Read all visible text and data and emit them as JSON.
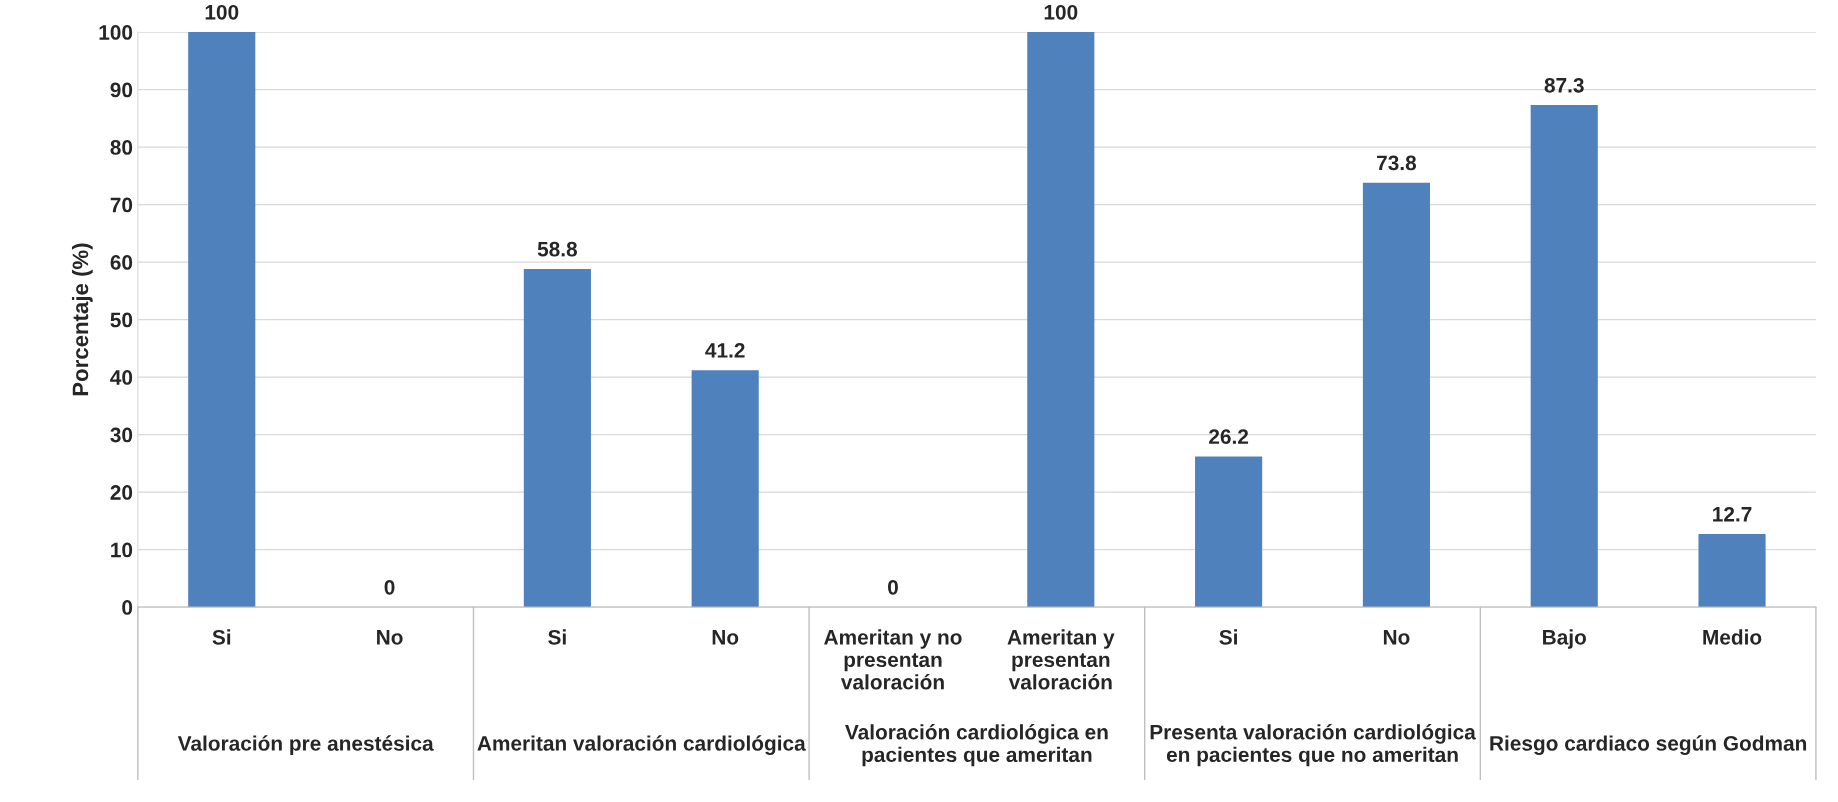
{
  "chart_data": {
    "type": "bar",
    "ylabel": "Porcentaje (%)",
    "categories": [
      "Si",
      "No",
      "Si",
      "No",
      "Ameritan y no\npresentan\nvaloración",
      "Ameritan y\npresentan\nvaloración",
      "Si",
      "No",
      "Bajo",
      "Medio"
    ],
    "values": [
      100,
      0,
      58.8,
      41.2,
      0,
      100,
      26.2,
      73.8,
      87.3,
      12.7
    ],
    "color": "#4f81bd",
    "ylim": [
      0,
      100
    ],
    "yticks": [
      0,
      10,
      20,
      30,
      40,
      50,
      60,
      70,
      80,
      90,
      100
    ],
    "grid": "y",
    "data_labels": true,
    "annotations": [
      "Valoración pre anestésica",
      "Ameritan valoración cardiológica",
      "Valoración cardiológica en\npacientes que ameritan",
      "Presenta valoración cardiológica\nen pacientes que no ameritan",
      "Riesgo cardiaco según Godman"
    ]
  }
}
